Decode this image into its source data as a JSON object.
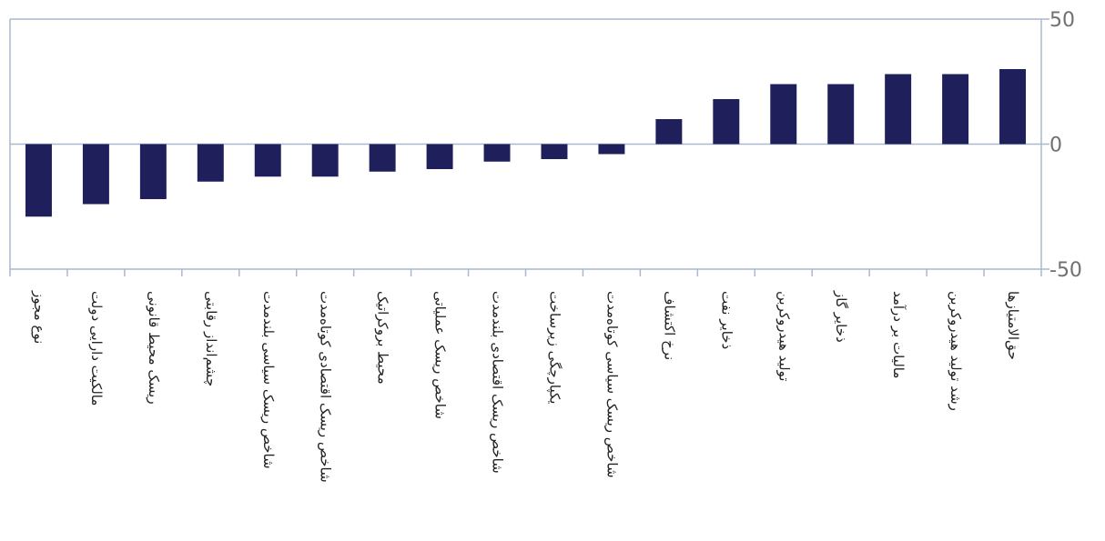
{
  "chart_data": {
    "type": "bar",
    "categories": [
      "نوع مجوز",
      "مالکیت دارایی دولت",
      "ریسک محیط قانونی",
      "چشم‌انداز رقابتی",
      "شاخص ریسک سیاسی بلندمدت",
      "شاخص ریسک اقتصادی کوتاه‌مدت",
      "محیط بروکراتیک",
      "شاخص ریسک عملیاتی",
      "شاخص ریسک اقتصادی بلندمدت",
      "یکپارچگی زیرساخت",
      "شاخص ریسک سیاسی کوتاه‌مدت",
      "نرخ اکتشاف",
      "ذخایر نفت",
      "تولید هیدروکربن",
      "ذخایر گاز",
      "مالیات بر درآمد",
      "رشد تولید هیدروکربن",
      "حق‌الامتیازها"
    ],
    "values": [
      -29,
      -24,
      -22,
      -15,
      -13,
      -13,
      -11,
      -10,
      -7,
      -6,
      -4,
      10,
      18,
      24,
      24,
      28,
      28,
      30
    ],
    "ylim": [
      -50,
      50
    ],
    "yticks": [
      "50",
      "0",
      "-50"
    ],
    "title": "",
    "xlabel": "",
    "ylabel": "",
    "grid": false,
    "colors": {
      "bar": "#1f1f5c",
      "axis": "#a9b9cc",
      "tick_text": "#707070",
      "label_text": "#222222"
    }
  }
}
